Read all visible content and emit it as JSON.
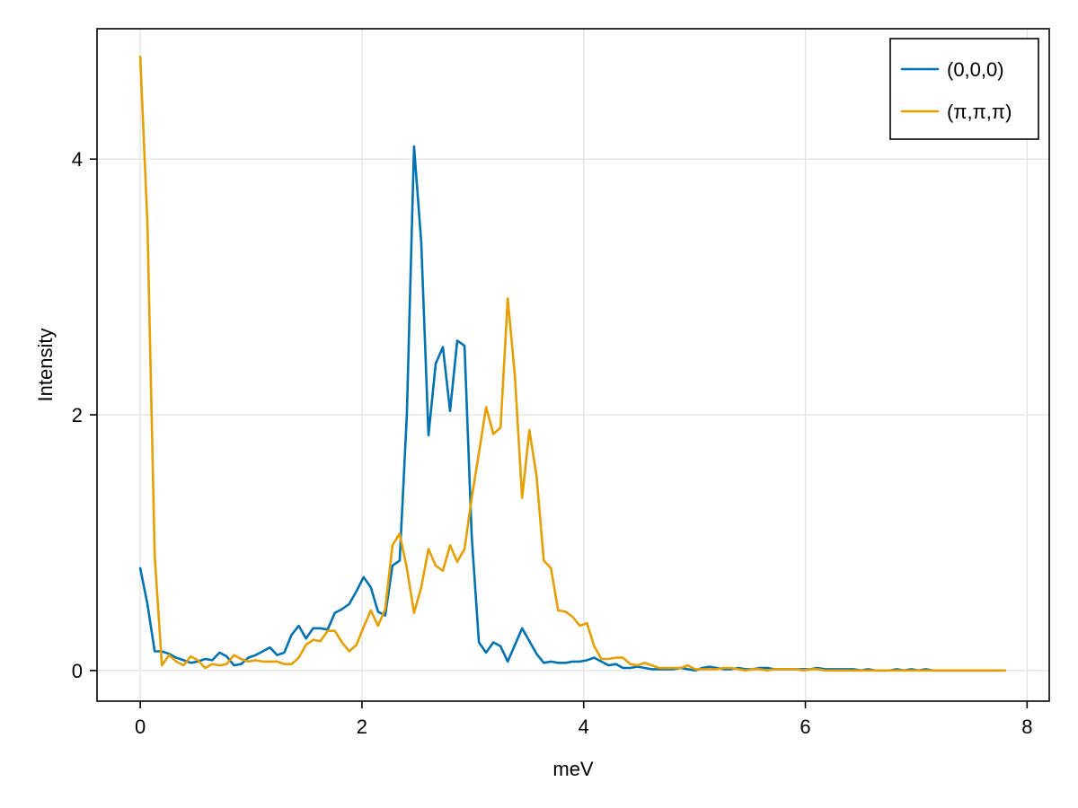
{
  "chart_data": {
    "type": "line",
    "title": "",
    "xlabel": "meV",
    "ylabel": "Intensity",
    "xlim": [
      -0.39,
      8.2
    ],
    "ylim": [
      -0.24,
      5.02
    ],
    "xticks": [
      0,
      2,
      4,
      6,
      8
    ],
    "xtick_labels": [
      "0",
      "2",
      "4",
      "6",
      "8"
    ],
    "yticks": [
      0,
      2,
      4
    ],
    "ytick_labels": [
      "0",
      "2",
      "4"
    ],
    "grid": true,
    "legend_position": "top-right",
    "series": [
      {
        "name": "(0,0,0)",
        "color": "#0072b2",
        "x": [
          0.0,
          0.065,
          0.13,
          0.195,
          0.26,
          0.325,
          0.39,
          0.455,
          0.52,
          0.585,
          0.65,
          0.715,
          0.78,
          0.845,
          0.91,
          0.975,
          1.04,
          1.105,
          1.17,
          1.235,
          1.3,
          1.365,
          1.43,
          1.495,
          1.56,
          1.625,
          1.69,
          1.755,
          1.82,
          1.885,
          1.95,
          2.015,
          2.08,
          2.145,
          2.21,
          2.275,
          2.34,
          2.405,
          2.47,
          2.535,
          2.6,
          2.665,
          2.73,
          2.795,
          2.86,
          2.925,
          2.99,
          3.055,
          3.12,
          3.185,
          3.25,
          3.315,
          3.38,
          3.445,
          3.51,
          3.575,
          3.64,
          3.705,
          3.77,
          3.835,
          3.9,
          3.965,
          4.03,
          4.095,
          4.16,
          4.225,
          4.29,
          4.355,
          4.42,
          4.485,
          4.55,
          4.615,
          4.68,
          4.745,
          4.81,
          4.875,
          4.94,
          5.005,
          5.07,
          5.135,
          5.2,
          5.265,
          5.33,
          5.395,
          5.46,
          5.525,
          5.59,
          5.655,
          5.72,
          5.785,
          5.85,
          5.915,
          5.98,
          6.045,
          6.11,
          6.175,
          6.24,
          6.305,
          6.37,
          6.435,
          6.5,
          6.565,
          6.63,
          6.695,
          6.76,
          6.825,
          6.89,
          6.955,
          7.02,
          7.085,
          7.15,
          7.215,
          7.28,
          7.345,
          7.41,
          7.475,
          7.54,
          7.605,
          7.67,
          7.735,
          7.8
        ],
        "values": [
          0.8,
          0.52,
          0.15,
          0.15,
          0.13,
          0.1,
          0.08,
          0.06,
          0.07,
          0.09,
          0.08,
          0.14,
          0.11,
          0.04,
          0.05,
          0.1,
          0.12,
          0.15,
          0.18,
          0.12,
          0.14,
          0.28,
          0.35,
          0.25,
          0.33,
          0.33,
          0.32,
          0.45,
          0.48,
          0.52,
          0.62,
          0.73,
          0.65,
          0.46,
          0.43,
          0.82,
          0.86,
          2.0,
          4.1,
          3.35,
          1.84,
          2.4,
          2.53,
          2.03,
          2.58,
          2.54,
          1.05,
          0.22,
          0.14,
          0.22,
          0.19,
          0.07,
          0.2,
          0.33,
          0.23,
          0.13,
          0.06,
          0.07,
          0.06,
          0.06,
          0.07,
          0.07,
          0.08,
          0.1,
          0.07,
          0.04,
          0.05,
          0.02,
          0.02,
          0.03,
          0.02,
          0.01,
          0.01,
          0.01,
          0.01,
          0.02,
          0.01,
          0.0,
          0.02,
          0.03,
          0.02,
          0.01,
          0.01,
          0.02,
          0.01,
          0.01,
          0.02,
          0.02,
          0.01,
          0.01,
          0.01,
          0.01,
          0.01,
          0.01,
          0.02,
          0.01,
          0.01,
          0.01,
          0.01,
          0.01,
          0.0,
          0.01,
          0.0,
          0.0,
          0.0,
          0.01,
          0.0,
          0.01,
          0.0,
          0.01,
          0.0,
          0.0,
          0.0,
          0.0,
          0.0,
          0.0,
          0.0,
          0.0,
          0.0,
          0.0,
          0.0
        ]
      },
      {
        "name": "(π,π,π)",
        "color": "#e69f00",
        "x": [
          0.0,
          0.065,
          0.13,
          0.195,
          0.26,
          0.325,
          0.39,
          0.455,
          0.52,
          0.585,
          0.65,
          0.715,
          0.78,
          0.845,
          0.91,
          0.975,
          1.04,
          1.105,
          1.17,
          1.235,
          1.3,
          1.365,
          1.43,
          1.495,
          1.56,
          1.625,
          1.69,
          1.755,
          1.82,
          1.885,
          1.95,
          2.015,
          2.08,
          2.145,
          2.21,
          2.275,
          2.34,
          2.405,
          2.47,
          2.535,
          2.6,
          2.665,
          2.73,
          2.795,
          2.86,
          2.925,
          2.99,
          3.055,
          3.12,
          3.185,
          3.25,
          3.315,
          3.38,
          3.445,
          3.51,
          3.575,
          3.64,
          3.705,
          3.77,
          3.835,
          3.9,
          3.965,
          4.03,
          4.095,
          4.16,
          4.225,
          4.29,
          4.355,
          4.42,
          4.485,
          4.55,
          4.615,
          4.68,
          4.745,
          4.81,
          4.875,
          4.94,
          5.005,
          5.07,
          5.135,
          5.2,
          5.265,
          5.33,
          5.395,
          5.46,
          5.525,
          5.59,
          5.655,
          5.72,
          5.785,
          5.85,
          5.915,
          5.98,
          6.045,
          6.11,
          6.175,
          6.24,
          6.305,
          6.37,
          6.435,
          6.5,
          6.565,
          6.63,
          6.695,
          6.76,
          6.825,
          6.89,
          6.955,
          7.02,
          7.085,
          7.15,
          7.215,
          7.28,
          7.345,
          7.41,
          7.475,
          7.54,
          7.605,
          7.67,
          7.735,
          7.8
        ],
        "values": [
          4.8,
          3.5,
          0.9,
          0.04,
          0.12,
          0.07,
          0.04,
          0.11,
          0.08,
          0.02,
          0.05,
          0.04,
          0.05,
          0.12,
          0.09,
          0.07,
          0.08,
          0.07,
          0.07,
          0.07,
          0.05,
          0.05,
          0.1,
          0.2,
          0.24,
          0.23,
          0.31,
          0.31,
          0.22,
          0.15,
          0.2,
          0.34,
          0.47,
          0.35,
          0.48,
          0.98,
          1.07,
          0.8,
          0.45,
          0.65,
          0.95,
          0.82,
          0.78,
          0.98,
          0.85,
          0.95,
          1.35,
          1.7,
          2.06,
          1.85,
          1.9,
          2.91,
          2.3,
          1.35,
          1.88,
          1.52,
          0.86,
          0.8,
          0.47,
          0.46,
          0.42,
          0.35,
          0.37,
          0.19,
          0.09,
          0.09,
          0.1,
          0.1,
          0.05,
          0.04,
          0.06,
          0.04,
          0.02,
          0.02,
          0.02,
          0.02,
          0.04,
          0.01,
          0.01,
          0.01,
          0.01,
          0.02,
          0.02,
          0.01,
          0.0,
          0.01,
          0.01,
          0.0,
          0.01,
          0.01,
          0.01,
          0.01,
          0.0,
          0.01,
          0.01,
          0.0,
          0.0,
          0.0,
          0.0,
          0.0,
          0.0,
          0.0,
          0.0,
          0.0,
          0.0,
          0.0,
          0.0,
          0.0,
          0.0,
          0.0,
          0.0,
          0.0,
          0.0,
          0.0,
          0.0,
          0.0,
          0.0,
          0.0,
          0.0,
          0.0,
          0.0
        ]
      }
    ]
  }
}
